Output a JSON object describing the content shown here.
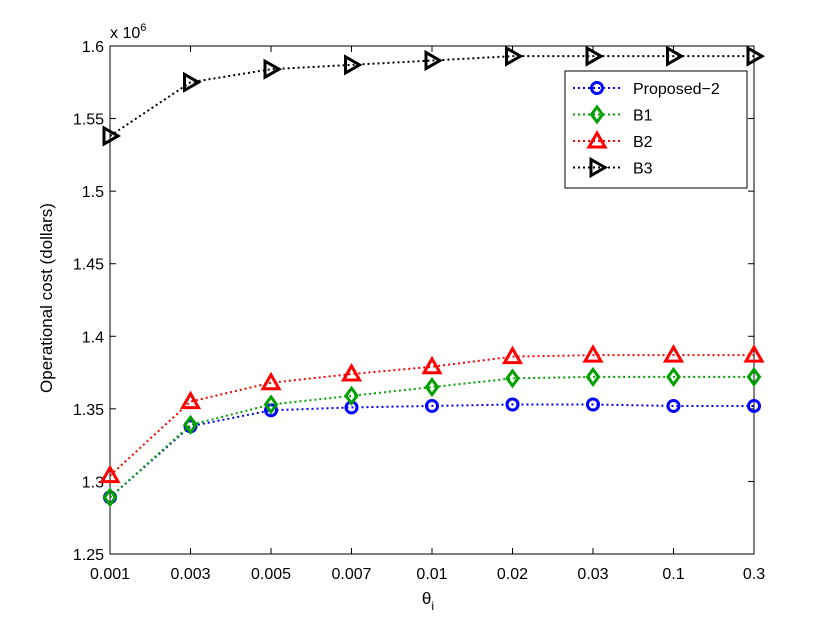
{
  "chart_data": {
    "type": "line",
    "xlabel": "θ",
    "xlabel_sub": "i",
    "ylabel": "Operational cost (dollars)",
    "y_multiplier": "x 10",
    "y_multiplier_exp": "6",
    "categories": [
      "0.001",
      "0.003",
      "0.005",
      "0.007",
      "0.01",
      "0.02",
      "0.03",
      "0.1",
      "0.3"
    ],
    "ylim": [
      1.25,
      1.6
    ],
    "yticks": [
      1.25,
      1.3,
      1.35,
      1.4,
      1.45,
      1.5,
      1.55,
      1.6
    ],
    "ytick_labels": [
      "1.25",
      "1.3",
      "1.35",
      "1.4",
      "1.45",
      "1.5",
      "1.55",
      "1.6"
    ],
    "grid": false,
    "legend_position": "top-right",
    "series": [
      {
        "name": "Proposed−2",
        "color": "#0000ff",
        "marker": "circle",
        "values": [
          1.289,
          1.338,
          1.349,
          1.351,
          1.352,
          1.353,
          1.353,
          1.352,
          1.352
        ]
      },
      {
        "name": "B1",
        "color": "#00a000",
        "marker": "diamond",
        "values": [
          1.289,
          1.339,
          1.353,
          1.359,
          1.365,
          1.371,
          1.372,
          1.372,
          1.372
        ]
      },
      {
        "name": "B2",
        "color": "#ff0000",
        "marker": "triangle-up",
        "values": [
          1.304,
          1.355,
          1.368,
          1.374,
          1.379,
          1.386,
          1.387,
          1.387,
          1.387
        ]
      },
      {
        "name": "B3",
        "color": "#000000",
        "marker": "triangle-right",
        "values": [
          1.538,
          1.575,
          1.584,
          1.587,
          1.59,
          1.593,
          1.593,
          1.593,
          1.593
        ]
      }
    ]
  }
}
